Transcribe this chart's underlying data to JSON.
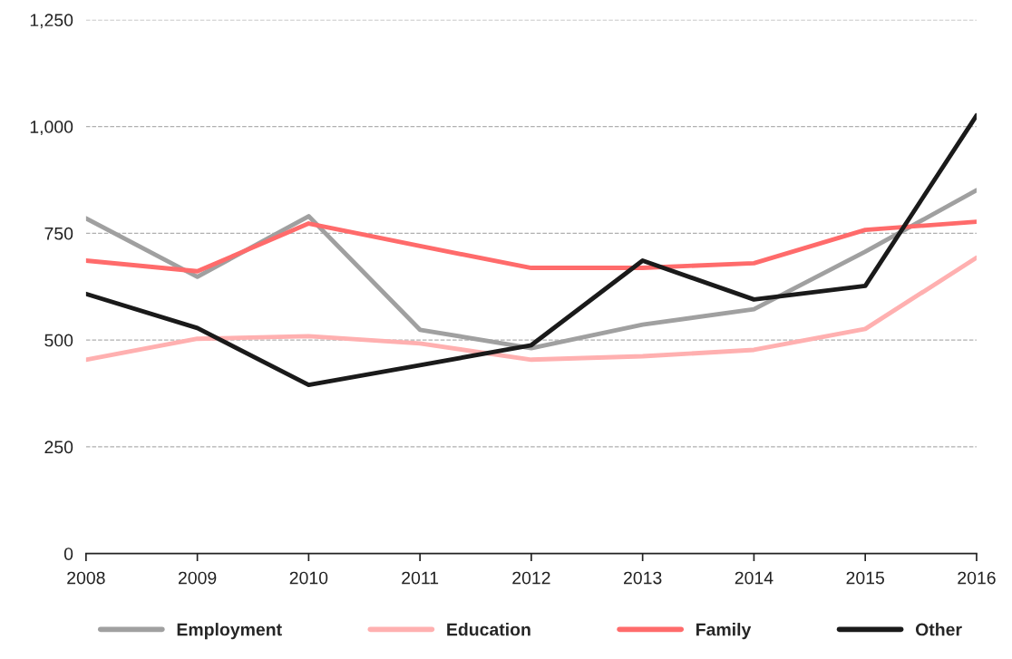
{
  "chart_data": {
    "type": "line",
    "x": [
      2008,
      2009,
      2010,
      2011,
      2012,
      2013,
      2014,
      2015,
      2016
    ],
    "series": [
      {
        "name": "Employment",
        "color": "#a0a0a0",
        "values": [
          785,
          648,
          790,
          524,
          481,
          536,
          572,
          707,
          851
        ]
      },
      {
        "name": "Education",
        "color": "#ffb0b0",
        "values": [
          454,
          503,
          509,
          492,
          454,
          462,
          477,
          526,
          693
        ]
      },
      {
        "name": "Family",
        "color": "#ff6b6b",
        "values": [
          686,
          661,
          773,
          720,
          669,
          669,
          680,
          758,
          777
        ]
      },
      {
        "name": "Other",
        "color": "#1a1a1a",
        "values": [
          608,
          528,
          395,
          441,
          488,
          686,
          595,
          627,
          1026
        ]
      }
    ],
    "xlim": [
      2008,
      2016
    ],
    "xticks": [
      2008,
      2009,
      2010,
      2011,
      2012,
      2013,
      2014,
      2015,
      2016
    ],
    "ylim": [
      0,
      1250
    ],
    "yticks": [
      0,
      {
        "value": 250,
        "label": "250"
      },
      {
        "value": 500,
        "label": "500"
      },
      {
        "value": 750,
        "label": "750"
      },
      {
        "value": 1000,
        "label": "1,000"
      },
      {
        "value": 1250,
        "label": "1,250"
      }
    ],
    "grid": "y",
    "legend": "bottom",
    "line_style": "solid"
  }
}
